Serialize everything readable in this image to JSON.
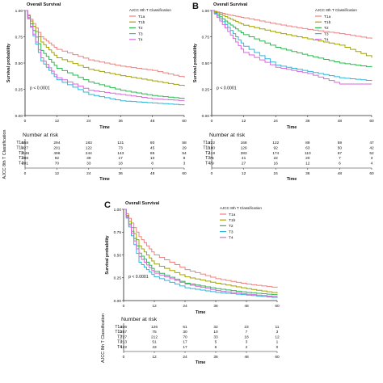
{
  "panels": [
    {
      "letter": "",
      "title": "Overall Survival",
      "legend_title": "AJCC 8th T Classification",
      "ylabel": "Survival probability",
      "xlabel": "Time",
      "pvalue": "p < 0.0001",
      "risk_title": "Number at risk",
      "risk_axis_label": "AJCC 8th T Classification",
      "risk_groups": [
        "T1a",
        "T1b",
        "T2",
        "T3",
        "T4"
      ],
      "risk_table": [
        [
          "558",
          "294",
          "183",
          "121",
          "80",
          "58"
        ],
        [
          "427",
          "201",
          "122",
          "73",
          "45",
          "29"
        ],
        [
          "1146",
          "496",
          "244",
          "143",
          "85",
          "54"
        ],
        [
          "288",
          "92",
          "39",
          "17",
          "10",
          "8"
        ],
        [
          "201",
          "70",
          "33",
          "18",
          "8",
          "3"
        ]
      ]
    },
    {
      "letter": "B",
      "title": "Overall Survival",
      "legend_title": "AJCC 8th T Classification",
      "ylabel": "Survival probability",
      "xlabel": "Time",
      "pvalue": "p < 0.0001",
      "risk_title": "Number at risk",
      "risk_axis_label": "",
      "risk_groups": [
        "T1a",
        "T1b",
        "T2",
        "T3",
        "T4"
      ],
      "risk_table": [
        [
          "222",
          "168",
          "122",
          "89",
          "59",
          "47"
        ],
        [
          "180",
          "129",
          "92",
          "63",
          "50",
          "42"
        ],
        [
          "419",
          "283",
          "174",
          "110",
          "87",
          "52"
        ],
        [
          "75",
          "41",
          "22",
          "20",
          "7",
          "3"
        ],
        [
          "79",
          "27",
          "16",
          "12",
          "6",
          "4"
        ]
      ]
    },
    {
      "letter": "C",
      "title": "Overall Survival",
      "legend_title": "AJCC 8th T Classification",
      "ylabel": "Survival probability",
      "xlabel": "Time",
      "pvalue": "p < 0.0001",
      "risk_title": "Number at risk",
      "risk_axis_label": "AJCC 8th T Classification",
      "risk_groups": [
        "T1a",
        "T1b",
        "T2",
        "T3",
        "T4"
      ],
      "risk_table": [
        [
          "336",
          "126",
          "61",
          "32",
          "23",
          "11"
        ],
        [
          "257",
          "75",
          "30",
          "10",
          "7",
          "3"
        ],
        [
          "727",
          "212",
          "70",
          "33",
          "18",
          "12"
        ],
        [
          "213",
          "51",
          "17",
          "5",
          "3",
          "1"
        ],
        [
          "122",
          "43",
          "17",
          "6",
          "2",
          "0"
        ]
      ]
    }
  ],
  "series_colors": [
    "#f08080",
    "#a3a300",
    "#2db84d",
    "#2fb6d9",
    "#d966e0"
  ],
  "chart_data": [
    {
      "type": "line",
      "title": "Overall Survival",
      "xlabel": "Time",
      "ylabel": "Survival probability",
      "xlim": [
        0,
        60
      ],
      "ylim": [
        0,
        1
      ],
      "x_ticks": [
        0,
        12,
        24,
        36,
        48,
        60
      ],
      "y_ticks": [
        "0.00",
        "0.25",
        "0.50",
        "0.75",
        "1.00"
      ],
      "legend_title": "AJCC 8th T Classification",
      "legend_position": "top-right",
      "series": [
        {
          "name": "T1a",
          "x": [
            0,
            6,
            12,
            24,
            36,
            48,
            60
          ],
          "y": [
            1.0,
            0.75,
            0.63,
            0.53,
            0.47,
            0.43,
            0.36
          ]
        },
        {
          "name": "T1b",
          "x": [
            0,
            6,
            12,
            24,
            36,
            48,
            60
          ],
          "y": [
            1.0,
            0.7,
            0.55,
            0.44,
            0.38,
            0.33,
            0.28
          ]
        },
        {
          "name": "T2",
          "x": [
            0,
            6,
            12,
            24,
            36,
            48,
            60
          ],
          "y": [
            1.0,
            0.62,
            0.45,
            0.32,
            0.24,
            0.19,
            0.16
          ]
        },
        {
          "name": "T3",
          "x": [
            0,
            6,
            12,
            24,
            36,
            48,
            60
          ],
          "y": [
            1.0,
            0.52,
            0.34,
            0.2,
            0.14,
            0.12,
            0.1
          ]
        },
        {
          "name": "T4",
          "x": [
            0,
            6,
            12,
            24,
            36,
            48,
            60
          ],
          "y": [
            1.0,
            0.55,
            0.36,
            0.24,
            0.2,
            0.16,
            0.14
          ]
        }
      ]
    },
    {
      "type": "line",
      "title": "Overall Survival",
      "xlabel": "Time",
      "ylabel": "Survival probability",
      "xlim": [
        0,
        60
      ],
      "ylim": [
        0,
        1
      ],
      "x_ticks": [
        0,
        12,
        24,
        36,
        48,
        60
      ],
      "y_ticks": [
        "0.00",
        "0.25",
        "0.50",
        "0.75",
        "1.00"
      ],
      "legend_title": "AJCC 8th T Classification",
      "legend_position": "top-right",
      "series": [
        {
          "name": "T1a",
          "x": [
            0,
            6,
            12,
            24,
            36,
            48,
            60
          ],
          "y": [
            1.0,
            0.96,
            0.93,
            0.87,
            0.82,
            0.78,
            0.73
          ]
        },
        {
          "name": "T1b",
          "x": [
            0,
            6,
            12,
            24,
            36,
            48,
            60
          ],
          "y": [
            1.0,
            0.93,
            0.86,
            0.79,
            0.73,
            0.67,
            0.55
          ]
        },
        {
          "name": "T2",
          "x": [
            0,
            6,
            12,
            24,
            36,
            48,
            60
          ],
          "y": [
            1.0,
            0.88,
            0.77,
            0.65,
            0.57,
            0.5,
            0.46
          ]
        },
        {
          "name": "T3",
          "x": [
            0,
            6,
            12,
            24,
            36,
            48,
            60
          ],
          "y": [
            1.0,
            0.84,
            0.66,
            0.48,
            0.42,
            0.36,
            0.33
          ]
        },
        {
          "name": "T4",
          "x": [
            0,
            6,
            12,
            24,
            36,
            48,
            60
          ],
          "y": [
            1.0,
            0.8,
            0.6,
            0.46,
            0.4,
            0.3,
            0.3
          ]
        }
      ]
    },
    {
      "type": "line",
      "title": "Overall Survival",
      "xlabel": "Time",
      "ylabel": "Survival probability",
      "xlim": [
        0,
        60
      ],
      "ylim": [
        0,
        1
      ],
      "x_ticks": [
        0,
        12,
        24,
        36,
        48,
        60
      ],
      "y_ticks": [
        "0.00",
        "0.25",
        "0.50",
        "0.75",
        "1.00"
      ],
      "legend_title": "AJCC 8th T Classification",
      "legend_position": "top-right",
      "series": [
        {
          "name": "T1a",
          "x": [
            0,
            6,
            12,
            24,
            36,
            48,
            60
          ],
          "y": [
            1.0,
            0.7,
            0.5,
            0.34,
            0.24,
            0.18,
            0.14
          ]
        },
        {
          "name": "T1b",
          "x": [
            0,
            6,
            12,
            24,
            36,
            48,
            60
          ],
          "y": [
            1.0,
            0.6,
            0.4,
            0.26,
            0.19,
            0.13,
            0.08
          ]
        },
        {
          "name": "T2",
          "x": [
            0,
            6,
            12,
            24,
            36,
            48,
            60
          ],
          "y": [
            1.0,
            0.52,
            0.32,
            0.19,
            0.13,
            0.09,
            0.06
          ]
        },
        {
          "name": "T3",
          "x": [
            0,
            6,
            12,
            24,
            36,
            48,
            60
          ],
          "y": [
            1.0,
            0.42,
            0.26,
            0.14,
            0.09,
            0.06,
            0.03
          ]
        },
        {
          "name": "T4",
          "x": [
            0,
            6,
            12,
            24,
            36,
            48,
            60
          ],
          "y": [
            1.0,
            0.48,
            0.3,
            0.18,
            0.11,
            0.07,
            0.04
          ]
        }
      ]
    }
  ]
}
